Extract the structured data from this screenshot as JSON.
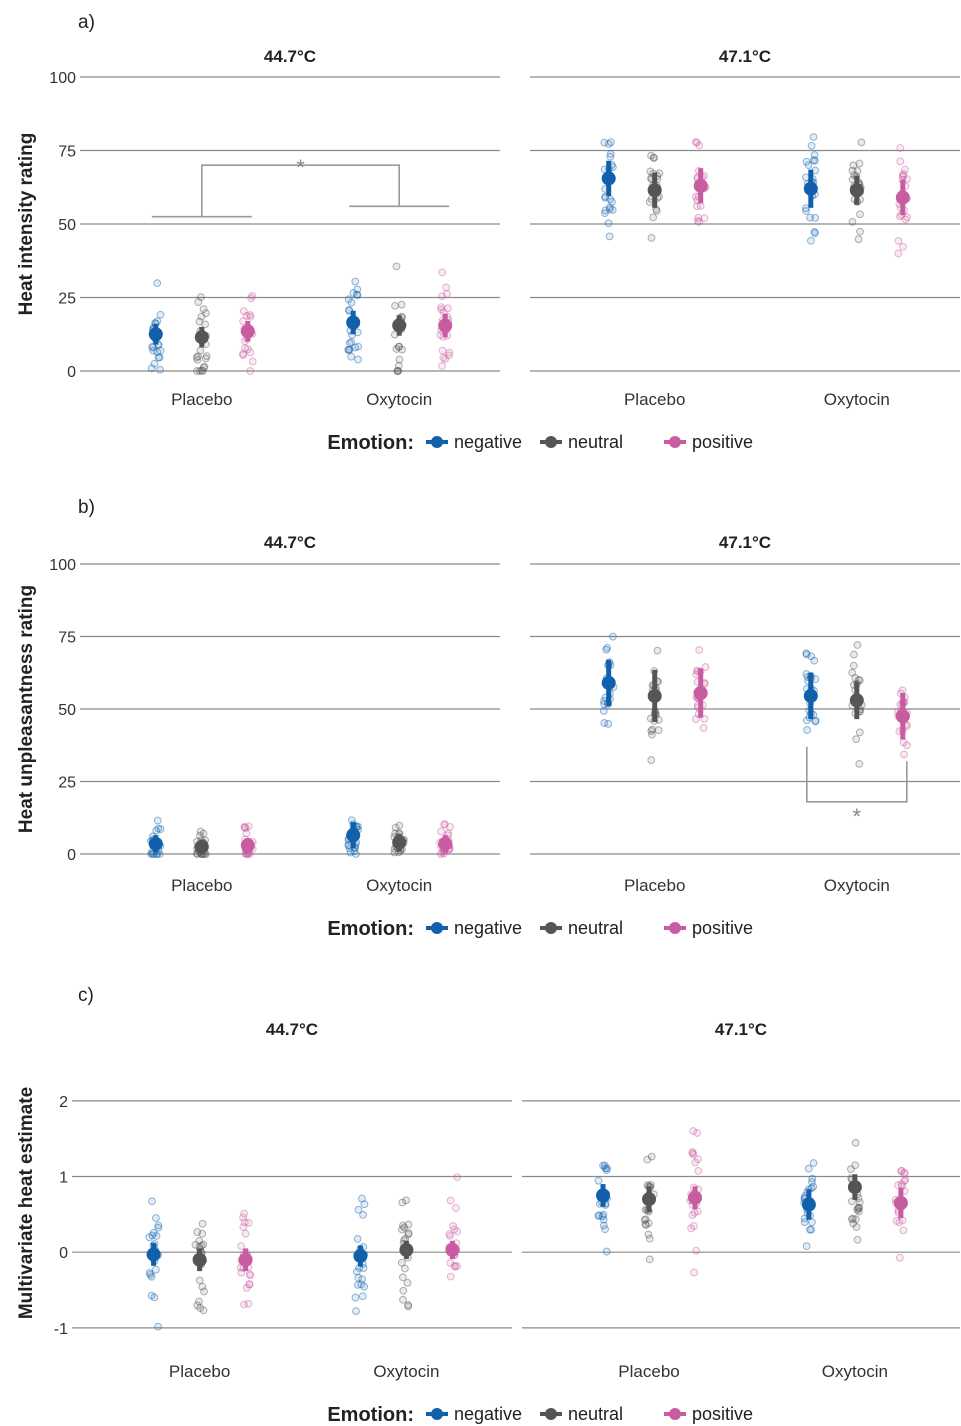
{
  "legend": {
    "title": "Emotion:",
    "items": [
      {
        "name": "negative",
        "color": "#1060ac"
      },
      {
        "name": "neutral",
        "color": "#555555"
      },
      {
        "name": "positive",
        "color": "#c85ca0"
      }
    ]
  },
  "chart_data": [
    {
      "panel": "a)",
      "type": "scatter",
      "ylabel": "Heat intensity rating",
      "ylim": [
        0,
        100
      ],
      "yticks": [
        0,
        25,
        50,
        75,
        100
      ],
      "facets": [
        "44.7°C",
        "47.1°C"
      ],
      "groups": [
        "Placebo",
        "Oxytocin"
      ],
      "emotions": [
        "negative",
        "neutral",
        "positive"
      ],
      "means": [
        {
          "facet": "44.7°C",
          "group": "Placebo",
          "negative": 12.5,
          "neutral": 11.5,
          "positive": 13.5
        },
        {
          "facet": "44.7°C",
          "group": "Oxytocin",
          "negative": 16.5,
          "neutral": 15.5,
          "positive": 15.5
        },
        {
          "facet": "47.1°C",
          "group": "Placebo",
          "negative": 65.5,
          "neutral": 61.5,
          "positive": 63
        },
        {
          "facet": "47.1°C",
          "group": "Oxytocin",
          "negative": 62,
          "neutral": 61.5,
          "positive": 59
        }
      ],
      "errors": [
        {
          "facet": "44.7°C",
          "group": "Placebo",
          "negative": 3.5,
          "neutral": 3.5,
          "positive": 3.5
        },
        {
          "facet": "44.7°C",
          "group": "Oxytocin",
          "negative": 4,
          "neutral": 3.5,
          "positive": 4
        },
        {
          "facet": "47.1°C",
          "group": "Placebo",
          "negative": 6,
          "neutral": 6,
          "positive": 6
        },
        {
          "facet": "47.1°C",
          "group": "Oxytocin",
          "negative": 6.5,
          "neutral": 5,
          "positive": 6
        }
      ],
      "significance": [
        {
          "facet": "44.7°C",
          "between": [
            "Placebo",
            "Oxytocin"
          ],
          "label": "*"
        }
      ]
    },
    {
      "panel": "b)",
      "type": "scatter",
      "ylabel": "Heat unpleasantness rating",
      "ylim": [
        0,
        100
      ],
      "yticks": [
        0,
        25,
        50,
        75,
        100
      ],
      "facets": [
        "44.7°C",
        "47.1°C"
      ],
      "groups": [
        "Placebo",
        "Oxytocin"
      ],
      "emotions": [
        "negative",
        "neutral",
        "positive"
      ],
      "means": [
        {
          "facet": "44.7°C",
          "group": "Placebo",
          "negative": 3.5,
          "neutral": 2.5,
          "positive": 3
        },
        {
          "facet": "44.7°C",
          "group": "Oxytocin",
          "negative": 6.5,
          "neutral": 4,
          "positive": 3.5
        },
        {
          "facet": "47.1°C",
          "group": "Placebo",
          "negative": 59,
          "neutral": 54.5,
          "positive": 55.5
        },
        {
          "facet": "47.1°C",
          "group": "Oxytocin",
          "negative": 54.5,
          "neutral": 53,
          "positive": 47.5
        }
      ],
      "errors": [
        {
          "facet": "44.7°C",
          "group": "Placebo",
          "negative": 3,
          "neutral": 2.5,
          "positive": 2.5
        },
        {
          "facet": "44.7°C",
          "group": "Oxytocin",
          "negative": 4.5,
          "neutral": 3,
          "positive": 3
        },
        {
          "facet": "47.1°C",
          "group": "Placebo",
          "negative": 8,
          "neutral": 9,
          "positive": 8.5
        },
        {
          "facet": "47.1°C",
          "group": "Oxytocin",
          "negative": 8,
          "neutral": 6.5,
          "positive": 8
        }
      ],
      "significance": [
        {
          "facet": "47.1°C",
          "between": [
            "negative",
            "positive"
          ],
          "group": "Oxytocin",
          "label": "*"
        }
      ]
    },
    {
      "panel": "c)",
      "type": "scatter",
      "ylabel": "Multivariate heat estimate",
      "ylim": [
        -1.2,
        2.5
      ],
      "yticks": [
        -1,
        0,
        1,
        2
      ],
      "facets": [
        "44.7°C",
        "47.1°C"
      ],
      "groups": [
        "Placebo",
        "Oxytocin"
      ],
      "emotions": [
        "negative",
        "neutral",
        "positive"
      ],
      "means": [
        {
          "facet": "44.7°C",
          "group": "Placebo",
          "negative": -0.03,
          "neutral": -0.1,
          "positive": -0.1
        },
        {
          "facet": "44.7°C",
          "group": "Oxytocin",
          "negative": -0.05,
          "neutral": 0.03,
          "positive": 0.03
        },
        {
          "facet": "47.1°C",
          "group": "Placebo",
          "negative": 0.75,
          "neutral": 0.7,
          "positive": 0.72
        },
        {
          "facet": "47.1°C",
          "group": "Oxytocin",
          "negative": 0.63,
          "neutral": 0.86,
          "positive": 0.65
        }
      ],
      "errors": [
        {
          "facet": "44.7°C",
          "group": "Placebo",
          "negative": 0.15,
          "neutral": 0.15,
          "positive": 0.15
        },
        {
          "facet": "44.7°C",
          "group": "Oxytocin",
          "negative": 0.14,
          "neutral": 0.12,
          "positive": 0.12
        },
        {
          "facet": "47.1°C",
          "group": "Placebo",
          "negative": 0.15,
          "neutral": 0.17,
          "positive": 0.15
        },
        {
          "facet": "47.1°C",
          "group": "Oxytocin",
          "negative": 0.2,
          "neutral": 0.17,
          "positive": 0.2
        }
      ],
      "significance": []
    }
  ]
}
